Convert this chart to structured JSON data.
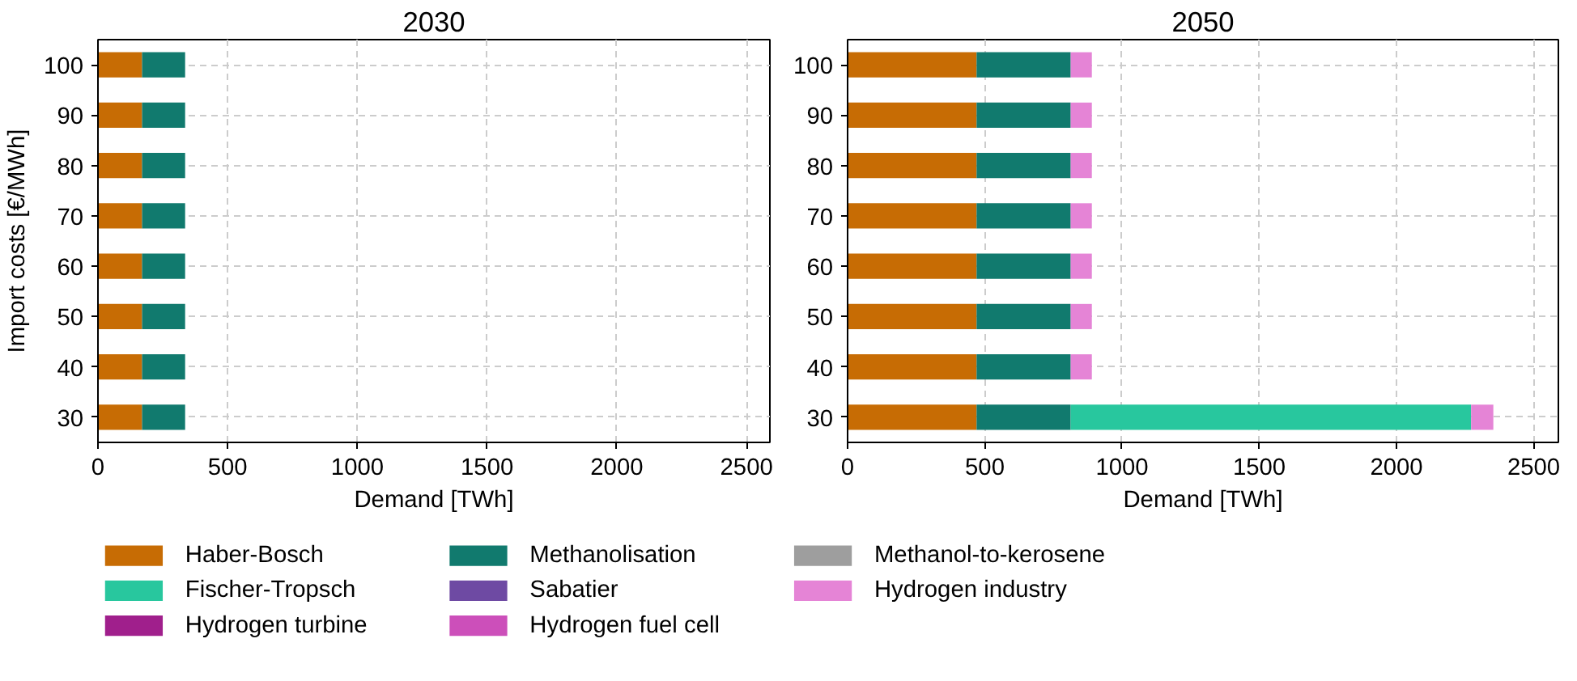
{
  "chart_data": [
    {
      "type": "bar",
      "orientation": "horizontal",
      "stacked": true,
      "title": "2030",
      "xlabel": "Demand [TWh]",
      "ylabel": "Import costs [€/MWh]",
      "categories": [
        "100",
        "90",
        "80",
        "70",
        "60",
        "50",
        "40",
        "30"
      ],
      "xlim": [
        0,
        2590
      ],
      "xticks": [
        0,
        500,
        1000,
        1500,
        2000,
        2500
      ],
      "grid": true,
      "legend": "bottom",
      "series": [
        {
          "name": "Haber-Bosch",
          "color": "#c76c04",
          "values": [
            170,
            170,
            170,
            170,
            170,
            170,
            170,
            170
          ]
        },
        {
          "name": "Methanolisation",
          "color": "#117a6e",
          "values": [
            166,
            166,
            166,
            166,
            166,
            166,
            166,
            166
          ]
        },
        {
          "name": "Methanol-to-kerosene",
          "color": "#9e9e9e",
          "values": [
            0,
            0,
            0,
            0,
            0,
            0,
            0,
            0
          ]
        },
        {
          "name": "Fischer-Tropsch",
          "color": "#28c79e",
          "values": [
            0,
            0,
            0,
            0,
            0,
            0,
            0,
            0
          ]
        },
        {
          "name": "Sabatier",
          "color": "#6e4aa3",
          "values": [
            0,
            0,
            0,
            0,
            0,
            0,
            0,
            0
          ]
        },
        {
          "name": "Hydrogen industry",
          "color": "#e584d6",
          "values": [
            0,
            0,
            0,
            0,
            0,
            0,
            0,
            0
          ]
        },
        {
          "name": "Hydrogen turbine",
          "color": "#a01f8c",
          "values": [
            0,
            0,
            0,
            0,
            0,
            0,
            0,
            0
          ]
        },
        {
          "name": "Hydrogen fuel cell",
          "color": "#cc4fba",
          "values": [
            0,
            0,
            0,
            0,
            0,
            0,
            0,
            0
          ]
        }
      ]
    },
    {
      "type": "bar",
      "orientation": "horizontal",
      "stacked": true,
      "title": "2050",
      "xlabel": "Demand [TWh]",
      "categories": [
        "100",
        "90",
        "80",
        "70",
        "60",
        "50",
        "40",
        "30"
      ],
      "xlim": [
        0,
        2590
      ],
      "xticks": [
        0,
        500,
        1000,
        1500,
        2000,
        2500
      ],
      "grid": true,
      "series": [
        {
          "color": "#c76c04",
          "values": [
            470,
            470,
            470,
            470,
            470,
            470,
            470,
            470
          ]
        },
        {
          "color": "#117a6e",
          "values": [
            343,
            343,
            343,
            343,
            343,
            343,
            343,
            343
          ]
        },
        {
          "color": "#9e9e9e",
          "values": [
            0,
            0,
            0,
            0,
            0,
            0,
            0,
            0
          ]
        },
        {
          "color": "#28c79e",
          "values": [
            0,
            0,
            0,
            0,
            0,
            0,
            0,
            1459
          ]
        },
        {
          "color": "#6e4aa3",
          "values": [
            0,
            0,
            0,
            0,
            0,
            0,
            0,
            0
          ]
        },
        {
          "color": "#e584d6",
          "values": [
            77,
            77,
            77,
            77,
            77,
            77,
            77,
            81
          ]
        },
        {
          "color": "#a01f8c",
          "values": [
            0,
            0,
            0,
            0,
            0,
            0,
            0,
            0
          ]
        },
        {
          "color": "#cc4fba",
          "values": [
            0,
            0,
            0,
            0,
            0,
            0,
            0,
            0
          ]
        }
      ]
    }
  ]
}
